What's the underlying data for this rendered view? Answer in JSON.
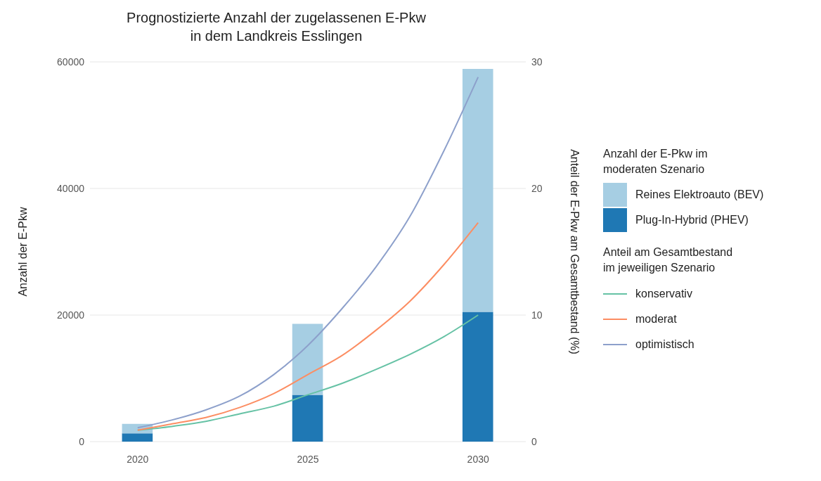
{
  "chart_data": {
    "type": "bar",
    "title": "Prognostizierte Anzahl der zugelassenen E-Pkw\nin dem Landkreis Esslingen",
    "ylabel": "Anzahl der E-Pkw",
    "y2label": "Anteil der E-Pkw am Gesamtbestand (%)",
    "legend_title": "Anzahl der E-Pkw im\nmoderaten Szenario",
    "annotations": [
      "Anteil am Gesamtbestand\nim jeweiligen Szenario"
    ],
    "x": [
      2020,
      2025,
      2030
    ],
    "stacked": true,
    "series": [
      {
        "name": "Plug-In-Hybrid (PHEV)",
        "color": "#1f78b4",
        "values": [
          1300,
          7400,
          20500
        ]
      },
      {
        "name": "Reines Elektroauto (BEV)",
        "color": "#a6cee3",
        "values": [
          1500,
          11200,
          38400
        ]
      },
      {
        "name": "konservativ",
        "type": "line",
        "axis": "y2",
        "color": "#66c2a5",
        "x": [
          2020,
          2021,
          2022,
          2023,
          2024,
          2025,
          2026,
          2027,
          2028,
          2029,
          2030
        ],
        "values": [
          0.9,
          1.2,
          1.6,
          2.2,
          2.8,
          3.7,
          4.6,
          5.7,
          6.9,
          8.3,
          10
        ]
      },
      {
        "name": "moderat",
        "type": "line",
        "axis": "y2",
        "color": "#fc8d62",
        "x": [
          2020,
          2021,
          2022,
          2023,
          2024,
          2025,
          2026,
          2027,
          2028,
          2029,
          2030
        ],
        "values": [
          0.9,
          1.4,
          1.9,
          2.7,
          3.8,
          5.3,
          6.8,
          8.8,
          11.1,
          14,
          17.3
        ]
      },
      {
        "name": "optimistisch",
        "type": "line",
        "axis": "y2",
        "color": "#8da0cb",
        "x": [
          2020,
          2021,
          2022,
          2023,
          2024,
          2025,
          2026,
          2027,
          2028,
          2029,
          2030
        ],
        "values": [
          1.1,
          1.7,
          2.5,
          3.6,
          5.3,
          7.6,
          10.5,
          13.8,
          17.8,
          23,
          28.8
        ]
      }
    ],
    "xlim": [
      2018.6,
      2031.4
    ],
    "xticks": [
      2020,
      2025,
      2030
    ],
    "ylim": [
      0,
      60000
    ],
    "yticks": [
      0,
      20000,
      40000,
      60000
    ],
    "y2lim": [
      0,
      30
    ],
    "y2ticks": [
      0,
      10,
      20,
      30
    ],
    "grid": "y",
    "legend": "right",
    "marker": "none",
    "line_style": "solid"
  }
}
